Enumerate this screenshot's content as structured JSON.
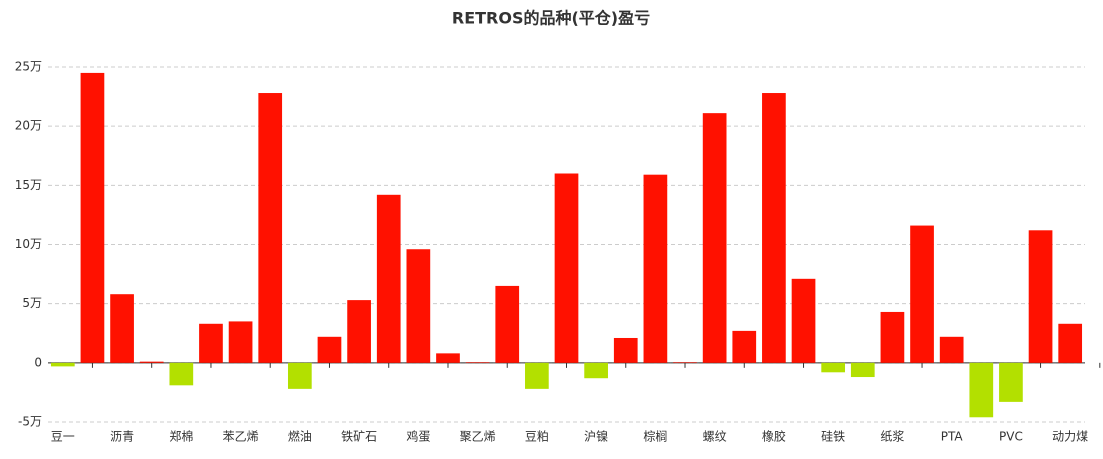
{
  "chart_data": {
    "type": "bar",
    "title": "RETROS的品种(平仓)盈亏",
    "categories": [
      "豆一",
      null,
      "沥青",
      null,
      "郑棉",
      null,
      "苯乙烯",
      null,
      "燃油",
      null,
      "铁矿石",
      null,
      "鸡蛋",
      null,
      "聚乙烯",
      null,
      "豆粕",
      null,
      "沪镍",
      null,
      "棕榈",
      null,
      "螺纹",
      null,
      "橡胶",
      null,
      "硅铁",
      null,
      "纸浆",
      null,
      "PTA",
      null,
      "PVC",
      null,
      "动力煤"
    ],
    "values": [
      -0.3,
      24.5,
      5.8,
      0.1,
      -1.9,
      3.3,
      3.5,
      22.8,
      -2.2,
      2.2,
      5.3,
      14.2,
      9.6,
      0.8,
      0.05,
      6.5,
      -2.2,
      16.0,
      -1.3,
      2.1,
      15.9,
      0.05,
      21.1,
      2.7,
      22.8,
      7.1,
      -0.8,
      -1.2,
      4.3,
      11.6,
      2.2,
      -4.6,
      -3.3,
      11.2,
      3.3
    ],
    "color": "#ff1100",
    "negative_color": "#b3e000",
    "ylim": [
      -5,
      25
    ],
    "yticks": [
      {
        "value": -5,
        "label": "-5万"
      },
      0,
      {
        "value": 5,
        "label": "5万"
      },
      {
        "value": 10,
        "label": "10万"
      },
      {
        "value": 15,
        "label": "15万"
      },
      {
        "value": 20,
        "label": "20万"
      },
      {
        "value": 25,
        "label": "25万"
      }
    ],
    "grid": true
  }
}
